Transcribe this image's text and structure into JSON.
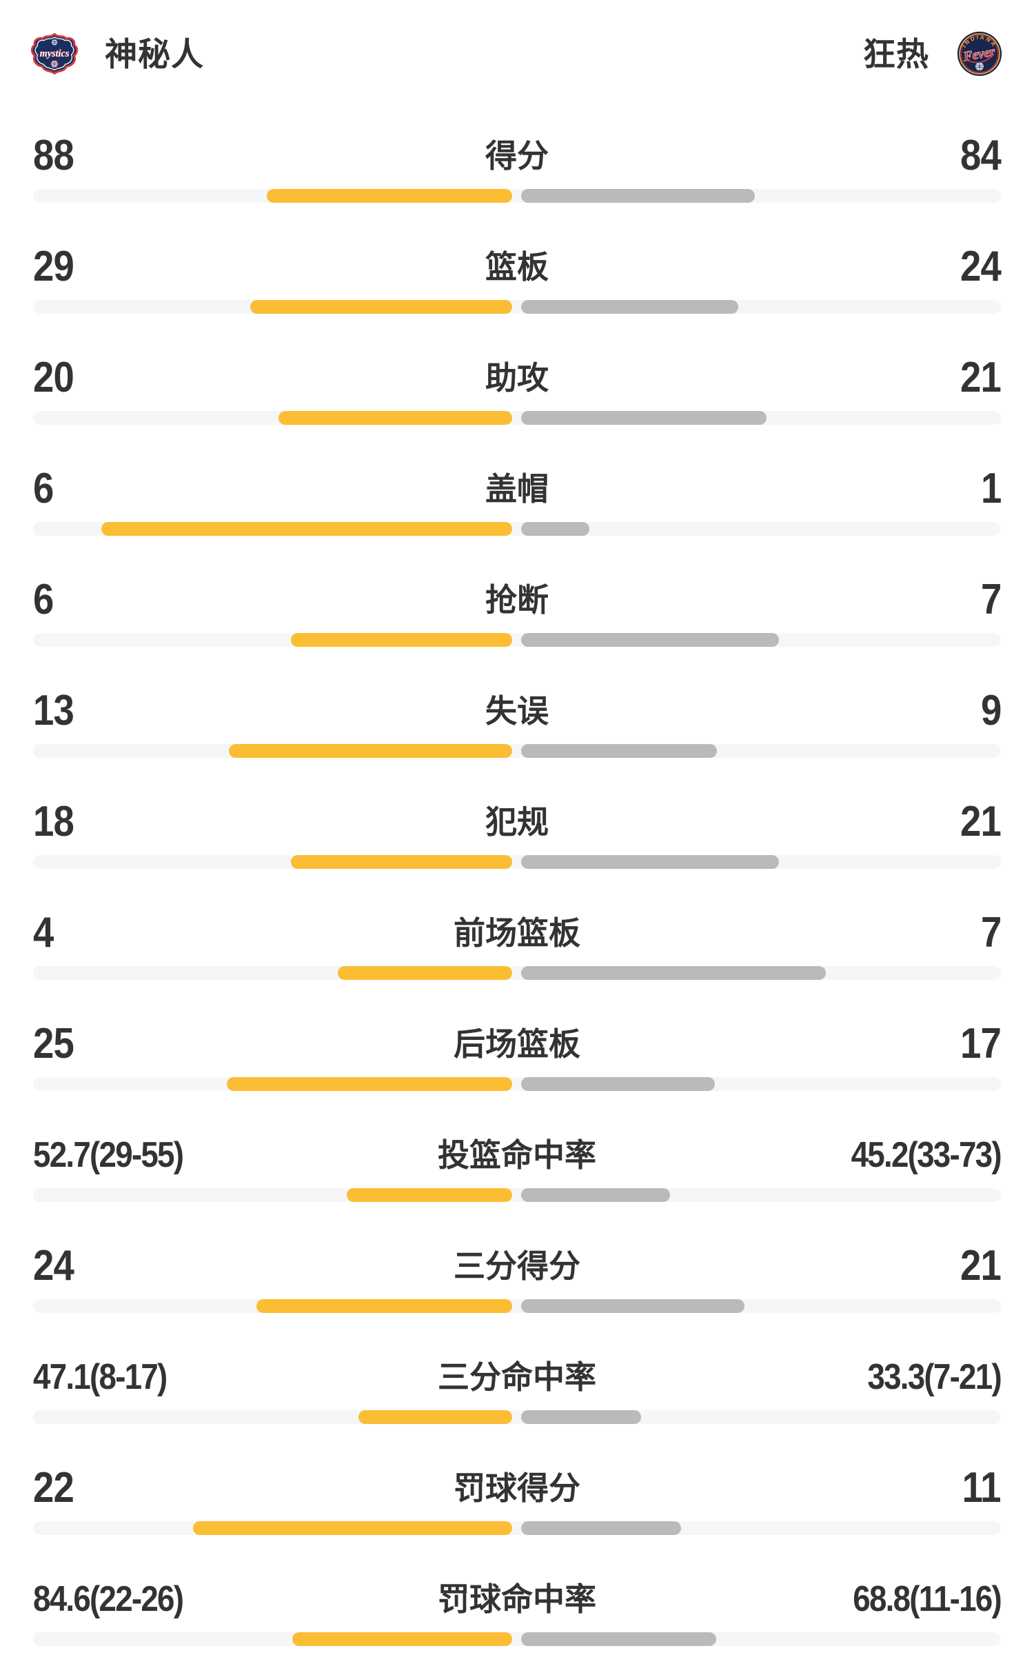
{
  "header": {
    "home": {
      "name": "神秘人",
      "logo_text": "mystics"
    },
    "away": {
      "name": "狂热",
      "logo_arc": "INDIANA",
      "logo_script": "Fever"
    }
  },
  "colors": {
    "home_bar": "#FBBD33",
    "away_bar": "#BABABA",
    "bar_track": "#F5F6F8",
    "text": "#333333",
    "logo_navy": "#1B2F5E",
    "logo_red": "#D6373F",
    "logo_gold": "#F2A33A"
  },
  "stats": [
    {
      "label": "得分",
      "type": "count",
      "left": {
        "text": "88",
        "value": 88
      },
      "right": {
        "text": "84",
        "value": 84
      }
    },
    {
      "label": "篮板",
      "type": "count",
      "left": {
        "text": "29",
        "value": 29
      },
      "right": {
        "text": "24",
        "value": 24
      }
    },
    {
      "label": "助攻",
      "type": "count",
      "left": {
        "text": "20",
        "value": 20
      },
      "right": {
        "text": "21",
        "value": 21
      }
    },
    {
      "label": "盖帽",
      "type": "count",
      "left": {
        "text": "6",
        "value": 6
      },
      "right": {
        "text": "1",
        "value": 1
      }
    },
    {
      "label": "抢断",
      "type": "count",
      "left": {
        "text": "6",
        "value": 6
      },
      "right": {
        "text": "7",
        "value": 7
      }
    },
    {
      "label": "失误",
      "type": "count",
      "left": {
        "text": "13",
        "value": 13
      },
      "right": {
        "text": "9",
        "value": 9
      }
    },
    {
      "label": "犯规",
      "type": "count",
      "left": {
        "text": "18",
        "value": 18
      },
      "right": {
        "text": "21",
        "value": 21
      }
    },
    {
      "label": "前场篮板",
      "type": "count",
      "left": {
        "text": "4",
        "value": 4
      },
      "right": {
        "text": "7",
        "value": 7
      }
    },
    {
      "label": "后场篮板",
      "type": "count",
      "left": {
        "text": "25",
        "value": 25
      },
      "right": {
        "text": "17",
        "value": 17
      }
    },
    {
      "label": "投篮命中率",
      "type": "percent",
      "left": {
        "text": "52.7(29-55)",
        "value": 52.7
      },
      "right": {
        "text": "45.2(33-73)",
        "value": 45.2
      }
    },
    {
      "label": "三分得分",
      "type": "count",
      "left": {
        "text": "24",
        "value": 24
      },
      "right": {
        "text": "21",
        "value": 21
      }
    },
    {
      "label": "三分命中率",
      "type": "percent",
      "left": {
        "text": "47.1(8-17)",
        "value": 47.1
      },
      "right": {
        "text": "33.3(7-21)",
        "value": 33.3
      }
    },
    {
      "label": "罚球得分",
      "type": "count",
      "left": {
        "text": "22",
        "value": 22
      },
      "right": {
        "text": "11",
        "value": 11
      }
    },
    {
      "label": "罚球命中率",
      "type": "percent",
      "left": {
        "text": "84.6(22-26)",
        "value": 84.6
      },
      "right": {
        "text": "68.8(11-16)",
        "value": 68.8
      }
    }
  ]
}
